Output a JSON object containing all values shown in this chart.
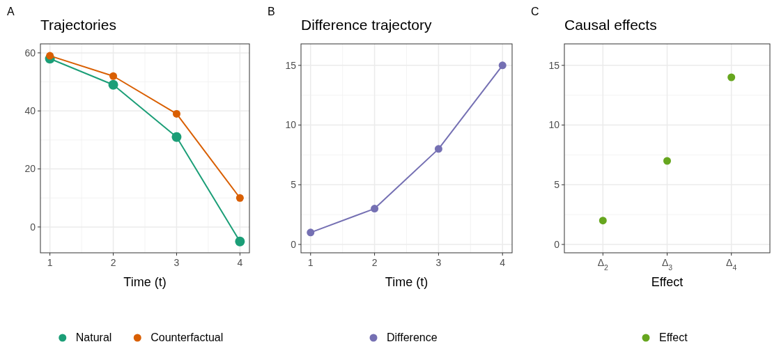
{
  "chart_data": [
    {
      "type": "line",
      "title": "Trajectories",
      "xlabel": "Time (t)",
      "annotations": [
        "A"
      ],
      "x": [
        1,
        2,
        3,
        4
      ],
      "xlim": [
        0.85,
        4.15
      ],
      "xticks": [
        1,
        2,
        3,
        4
      ],
      "ylim": [
        -8.9,
        63.1
      ],
      "yticks": [
        0,
        20,
        40,
        60
      ],
      "grid": true,
      "legend": "bottom",
      "marker": "circle",
      "line_style": "solid",
      "series": [
        {
          "name": "Natural",
          "color": "#1b9e77",
          "values": [
            58,
            49,
            31,
            -5
          ]
        },
        {
          "name": "Counterfactual",
          "color": "#d95f02",
          "values": [
            59,
            52,
            39,
            10
          ]
        }
      ]
    },
    {
      "type": "line",
      "title": "Difference trajectory",
      "xlabel": "Time (t)",
      "annotations": [
        "B"
      ],
      "x": [
        1,
        2,
        3,
        4
      ],
      "xlim": [
        0.85,
        4.15
      ],
      "xticks": [
        1,
        2,
        3,
        4
      ],
      "ylim": [
        -0.7,
        16.8
      ],
      "yticks": [
        0,
        5,
        10,
        15
      ],
      "grid": true,
      "legend": "bottom",
      "marker": "circle",
      "line_style": "solid",
      "series": [
        {
          "name": "Difference",
          "color": "#7570b3",
          "values": [
            1,
            3,
            8,
            15
          ]
        }
      ]
    },
    {
      "type": "scatter",
      "title": "Causal effects",
      "xlabel": "Effect",
      "annotations": [
        "C"
      ],
      "categories": [
        "Δ$_{2}$",
        "Δ$_{3}$",
        "Δ$_{4}$"
      ],
      "ylim": [
        -0.7,
        16.8
      ],
      "yticks": [
        0,
        5,
        10,
        15
      ],
      "grid": true,
      "legend": "bottom",
      "marker": "circle",
      "series": [
        {
          "name": "Effect",
          "color": "#66a61e",
          "values": [
            2,
            7,
            14
          ]
        }
      ]
    }
  ]
}
